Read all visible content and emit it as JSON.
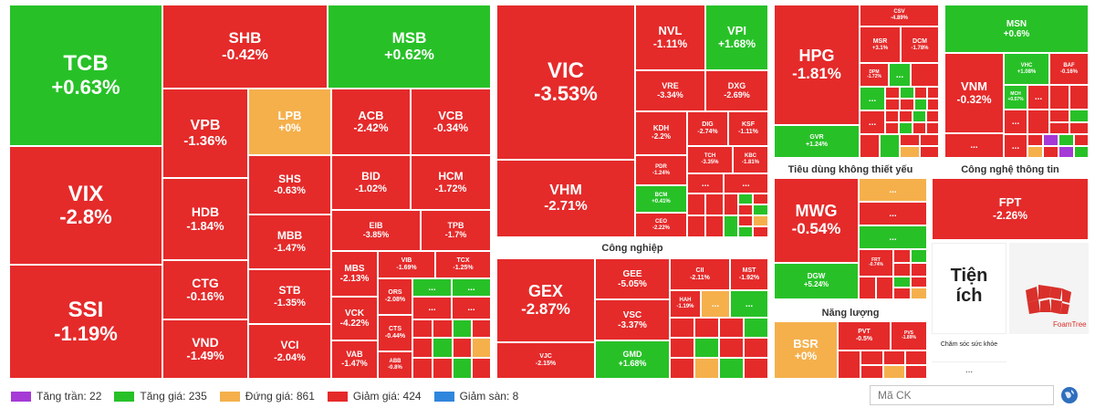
{
  "legend": {
    "ceiling": "Tăng trần: 22",
    "up": "Tăng giá: 235",
    "flat": "Đứng giá: 861",
    "down": "Giảm giá: 424",
    "floor": "Giảm sàn: 8"
  },
  "colors": {
    "up": "#27c127",
    "down": "#e52a2a",
    "flat": "#f5b04c",
    "ceiling": "#a63ad6",
    "floor": "#2f86dd"
  },
  "sections": {
    "industrial": "Công nghiệp",
    "consumer_disc": "Tiêu dùng không thiết yếu",
    "it": "Công nghệ thông tin",
    "energy": "Năng lượng",
    "utilities": "Tiện ích",
    "health": "Chăm sóc sức khỏe"
  },
  "search_placeholder": "Mã CK",
  "more": "...",
  "tiles": {
    "TCB": {
      "s": "TCB",
      "v": "+0.63%"
    },
    "SHB": {
      "s": "SHB",
      "v": "-0.42%"
    },
    "MSB": {
      "s": "MSB",
      "v": "+0.62%"
    },
    "VPB": {
      "s": "VPB",
      "v": "-1.36%"
    },
    "LPB": {
      "s": "LPB",
      "v": "+0%"
    },
    "ACB": {
      "s": "ACB",
      "v": "-2.42%"
    },
    "VCB": {
      "s": "VCB",
      "v": "-0.34%"
    },
    "VIX": {
      "s": "VIX",
      "v": "-2.8%"
    },
    "HDB": {
      "s": "HDB",
      "v": "-1.84%"
    },
    "SHS": {
      "s": "SHS",
      "v": "-0.63%"
    },
    "BID": {
      "s": "BID",
      "v": "-1.02%"
    },
    "HCM": {
      "s": "HCM",
      "v": "-1.72%"
    },
    "EIB": {
      "s": "EIB",
      "v": "-3.85%"
    },
    "TPB": {
      "s": "TPB",
      "v": "-1.7%"
    },
    "MBB": {
      "s": "MBB",
      "v": "-1.47%"
    },
    "SSI": {
      "s": "SSI",
      "v": "-1.19%"
    },
    "CTG": {
      "s": "CTG",
      "v": "-0.16%"
    },
    "STB": {
      "s": "STB",
      "v": "-1.35%"
    },
    "MBS": {
      "s": "MBS",
      "v": "-2.13%"
    },
    "VIB": {
      "s": "VIB",
      "v": "-1.69%"
    },
    "TCX": {
      "s": "TCX",
      "v": "-1.25%"
    },
    "VND": {
      "s": "VND",
      "v": "-1.49%"
    },
    "VCI": {
      "s": "VCI",
      "v": "-2.04%"
    },
    "VCK": {
      "s": "VCK",
      "v": "-4.22%"
    },
    "VAB": {
      "s": "VAB",
      "v": "-1.47%"
    },
    "ORS": {
      "s": "ORS",
      "v": "-2.08%"
    },
    "CTS": {
      "s": "CTS",
      "v": "-0.44%"
    },
    "ABB": {
      "s": "ABB",
      "v": "-0.8%"
    },
    "VIC": {
      "s": "VIC",
      "v": "-3.53%"
    },
    "NVL": {
      "s": "NVL",
      "v": "-1.11%"
    },
    "VPI": {
      "s": "VPI",
      "v": "+1.68%"
    },
    "VRE": {
      "s": "VRE",
      "v": "-3.34%"
    },
    "DXG": {
      "s": "DXG",
      "v": "-2.69%"
    },
    "KDH": {
      "s": "KDH",
      "v": "-2.2%"
    },
    "DIG": {
      "s": "DIG",
      "v": "-2.74%"
    },
    "KSF": {
      "s": "KSF",
      "v": "-1.11%"
    },
    "TCH": {
      "s": "TCH",
      "v": "-3.35%"
    },
    "KBC": {
      "s": "KBC",
      "v": "-1.81%"
    },
    "PDR": {
      "s": "PDR",
      "v": "-1.24%"
    },
    "VHM": {
      "s": "VHM",
      "v": "-2.71%"
    },
    "BCM": {
      "s": "BCM",
      "v": "+0.41%"
    },
    "CEO": {
      "s": "CEO",
      "v": "-2.22%"
    },
    "GEX": {
      "s": "GEX",
      "v": "-2.87%"
    },
    "GEE": {
      "s": "GEE",
      "v": "-5.05%"
    },
    "CII": {
      "s": "CII",
      "v": "-2.11%"
    },
    "MST": {
      "s": "MST",
      "v": "-1.92%"
    },
    "HAH": {
      "s": "HAH",
      "v": "-1.19%"
    },
    "VSC": {
      "s": "VSC",
      "v": "-3.37%"
    },
    "VJC": {
      "s": "VJC",
      "v": "-2.15%"
    },
    "GMD": {
      "s": "GMD",
      "v": "+1.68%"
    },
    "HPG": {
      "s": "HPG",
      "v": "-1.81%"
    },
    "CSV": {
      "s": "CSV",
      "v": "-4.89%"
    },
    "MSR": {
      "s": "MSR",
      "v": "+3.1%"
    },
    "DCM": {
      "s": "DCM",
      "v": "-1.78%"
    },
    "DPM": {
      "s": "DPM",
      "v": "-1.72%"
    },
    "GVR": {
      "s": "GVR",
      "v": "+1.24%"
    },
    "MSN": {
      "s": "MSN",
      "v": "+0.6%"
    },
    "VNM": {
      "s": "VNM",
      "v": "-0.32%"
    },
    "VHC": {
      "s": "VHC",
      "v": "+1.08%"
    },
    "BAF": {
      "s": "BAF",
      "v": "-0.16%"
    },
    "MCH": {
      "s": "MCH",
      "v": "+0.57%"
    },
    "MWG": {
      "s": "MWG",
      "v": "-0.54%"
    },
    "DGW": {
      "s": "DGW",
      "v": "+5.24%"
    },
    "FRT": {
      "s": "FRT",
      "v": "-0.74%"
    },
    "FPT": {
      "s": "FPT",
      "v": "-2.26%"
    },
    "BSR": {
      "s": "BSR",
      "v": "+0%"
    },
    "PVT": {
      "s": "PVT",
      "v": "-0.5%"
    },
    "PVS": {
      "s": "PVS",
      "v": "-1.89%"
    }
  }
}
